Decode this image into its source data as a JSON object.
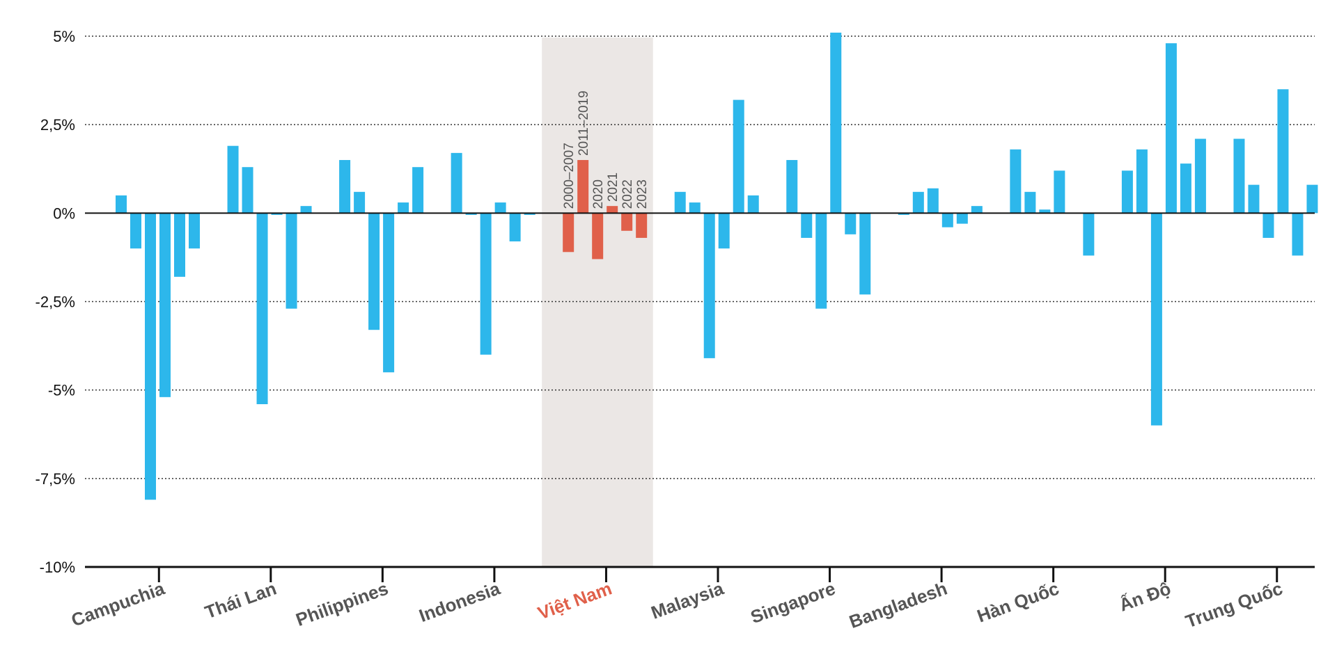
{
  "chart_data": {
    "type": "bar",
    "title": "",
    "xlabel": "",
    "ylabel": "",
    "ylim": [
      -10,
      5
    ],
    "yticks": [
      5,
      2.5,
      0,
      -2.5,
      -5,
      -7.5,
      -10
    ],
    "ytick_labels": [
      "5%",
      "2,5%",
      "0%",
      "-2,5%",
      "-5%",
      "-7,5%",
      "-10%"
    ],
    "grid": true,
    "grid_style": "dotted horizontal",
    "colors": {
      "default": "#2db7eb",
      "highlight": "#e0604a",
      "highlight_band": "#ebe7e5",
      "axis": "#111111"
    },
    "highlight_category": "Việt Nam",
    "series_labels": [
      "2000–2007",
      "2011–2019",
      "2020",
      "2021",
      "2022",
      "2023"
    ],
    "categories": [
      "Campuchia",
      "Thái Lan",
      "Philippines",
      "Indonesia",
      "Việt Nam",
      "Malaysia",
      "Singapore",
      "Bangladesh",
      "Hàn Quốc",
      "Ấn Độ",
      "Trung Quốc"
    ],
    "values": [
      [
        0.5,
        -1.0,
        -8.1,
        -5.2,
        -1.8,
        -1.0
      ],
      [
        1.9,
        1.3,
        -5.4,
        -0.05,
        -2.7,
        0.2
      ],
      [
        1.5,
        0.6,
        -3.3,
        -4.5,
        0.3,
        1.3
      ],
      [
        1.7,
        -0.05,
        -4.0,
        0.3,
        -0.8,
        -0.05
      ],
      [
        -1.1,
        1.5,
        -1.3,
        0.2,
        -0.5,
        -0.7
      ],
      [
        0.6,
        0.3,
        -4.1,
        -1.0,
        3.2,
        0.5
      ],
      [
        1.5,
        -0.7,
        -2.7,
        5.1,
        -0.6,
        -2.3
      ],
      [
        -0.05,
        0.6,
        0.7,
        -0.4,
        -0.3,
        0.2
      ],
      [
        1.8,
        0.6,
        0.1,
        1.2,
        0.0,
        -1.2
      ],
      [
        1.2,
        1.8,
        -6.0,
        4.8,
        1.4,
        2.1
      ],
      [
        2.1,
        0.8,
        -0.7,
        3.5,
        -1.2,
        0.8
      ]
    ]
  }
}
